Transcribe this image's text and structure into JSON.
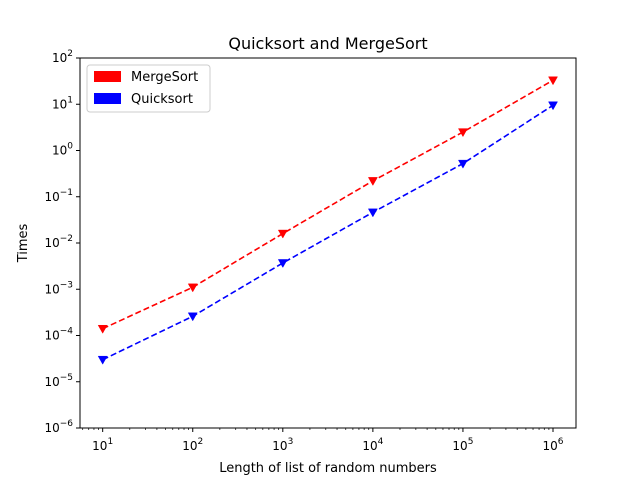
{
  "chart_data": {
    "type": "line",
    "title": "Quicksort and MergeSort",
    "xlabel": "Length of list of random numbers",
    "ylabel": "Times",
    "xscale": "log",
    "yscale": "log",
    "xlim": [
      5.6,
      1800000.0
    ],
    "ylim": [
      1e-06,
      100
    ],
    "grid": false,
    "legend_position": "top-left",
    "x": [
      10,
      100,
      1000,
      10000,
      100000,
      1000000
    ],
    "x_tick_labels": [
      {
        "base": "10",
        "exp": "1"
      },
      {
        "base": "10",
        "exp": "2"
      },
      {
        "base": "10",
        "exp": "3"
      },
      {
        "base": "10",
        "exp": "4"
      },
      {
        "base": "10",
        "exp": "5"
      },
      {
        "base": "10",
        "exp": "6"
      }
    ],
    "y_tick_labels": [
      {
        "base": "10",
        "exp": "2"
      },
      {
        "base": "10",
        "exp": "1"
      },
      {
        "base": "10",
        "exp": "0"
      },
      {
        "base": "10",
        "exp": "−1"
      },
      {
        "base": "10",
        "exp": "−2"
      },
      {
        "base": "10",
        "exp": "−3"
      },
      {
        "base": "10",
        "exp": "−4"
      },
      {
        "base": "10",
        "exp": "−5"
      },
      {
        "base": "10",
        "exp": "−6"
      }
    ],
    "series": [
      {
        "name": "MergeSort",
        "color": "#ff0000",
        "linestyle": "dashed",
        "marker": "triangle-down",
        "values": [
          0.00014,
          0.0011,
          0.016,
          0.22,
          2.5,
          33
        ]
      },
      {
        "name": "Quicksort",
        "color": "#0000ff",
        "linestyle": "dashed",
        "marker": "triangle-down",
        "values": [
          3e-05,
          0.00026,
          0.0037,
          0.046,
          0.52,
          9.5
        ]
      }
    ]
  }
}
